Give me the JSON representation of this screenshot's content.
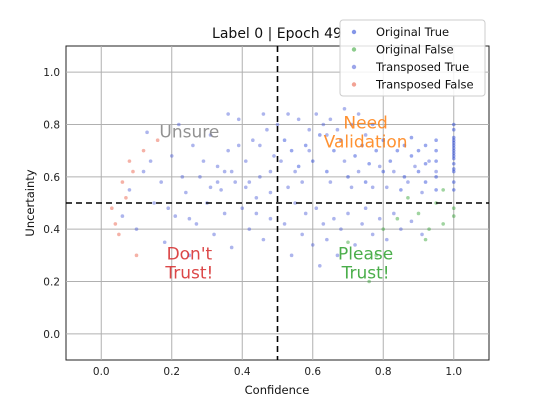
{
  "chart_data": {
    "type": "scatter",
    "title": "Label 0 | Epoch 49",
    "xlabel": "Confidence",
    "ylabel": "Uncertainty",
    "xlim": [
      -0.1,
      1.1
    ],
    "ylim": [
      -0.1,
      1.1
    ],
    "xticks": [
      "0.0",
      "0.2",
      "0.4",
      "0.6",
      "0.8",
      "1.0"
    ],
    "yticks": [
      "0.0",
      "0.2",
      "0.4",
      "0.6",
      "0.8",
      "1.0"
    ],
    "grid": true,
    "thresholds": {
      "x": 0.5,
      "y": 0.5
    },
    "legend_position": "top-right",
    "series": [
      {
        "name": "Original True",
        "color": "#1f3fd6",
        "points": [
          [
            1.0,
            0.62
          ],
          [
            1.0,
            0.65
          ],
          [
            1.0,
            0.68
          ],
          [
            1.0,
            0.7
          ],
          [
            1.0,
            0.72
          ],
          [
            1.0,
            0.74
          ],
          [
            1.0,
            0.75
          ],
          [
            1.0,
            0.63
          ],
          [
            1.0,
            0.58
          ],
          [
            1.0,
            0.55
          ],
          [
            1.0,
            0.78
          ],
          [
            1.0,
            0.8
          ],
          [
            1.0,
            0.67
          ],
          [
            1.0,
            0.69
          ],
          [
            1.0,
            0.71
          ],
          [
            1.0,
            0.73
          ],
          [
            0.95,
            0.7
          ],
          [
            0.95,
            0.66
          ],
          [
            0.95,
            0.74
          ],
          [
            0.95,
            0.6
          ],
          [
            0.95,
            0.55
          ],
          [
            0.92,
            0.72
          ],
          [
            0.92,
            0.65
          ],
          [
            0.92,
            0.58
          ],
          [
            0.9,
            0.7
          ],
          [
            0.9,
            0.62
          ],
          [
            0.88,
            0.75
          ],
          [
            0.88,
            0.68
          ],
          [
            0.86,
            0.72
          ],
          [
            0.86,
            0.6
          ],
          [
            0.84,
            0.7
          ],
          [
            0.82,
            0.66
          ],
          [
            0.8,
            0.74
          ],
          [
            0.8,
            0.62
          ],
          [
            0.78,
            0.7
          ],
          [
            0.76,
            0.65
          ],
          [
            0.74,
            0.72
          ],
          [
            0.72,
            0.68
          ],
          [
            0.7,
            0.6
          ],
          [
            0.68,
            0.74
          ],
          [
            0.66,
            0.7
          ],
          [
            0.64,
            0.62
          ],
          [
            0.62,
            0.76
          ],
          [
            0.6,
            0.66
          ],
          [
            0.58,
            0.72
          ],
          [
            0.56,
            0.64
          ],
          [
            0.54,
            0.7
          ],
          [
            0.52,
            0.74
          ],
          [
            0.85,
            0.55
          ],
          [
            0.75,
            0.58
          ]
        ]
      },
      {
        "name": "Original False",
        "color": "#2ca02c",
        "points": [
          [
            1.0,
            0.45
          ],
          [
            1.0,
            0.48
          ],
          [
            0.97,
            0.42
          ],
          [
            0.95,
            0.5
          ],
          [
            0.93,
            0.4
          ],
          [
            0.9,
            0.46
          ],
          [
            0.87,
            0.52
          ],
          [
            0.92,
            0.36
          ],
          [
            0.8,
            0.4
          ],
          [
            0.78,
            0.3
          ],
          [
            0.76,
            0.2
          ],
          [
            0.97,
            0.55
          ],
          [
            0.7,
            0.35
          ],
          [
            0.84,
            0.44
          ]
        ]
      },
      {
        "name": "Transposed True",
        "color": "#4a5bd8",
        "points": [
          [
            0.06,
            0.45
          ],
          [
            0.08,
            0.55
          ],
          [
            0.1,
            0.4
          ],
          [
            0.12,
            0.62
          ],
          [
            0.13,
            0.77
          ],
          [
            0.15,
            0.5
          ],
          [
            0.17,
            0.58
          ],
          [
            0.18,
            0.35
          ],
          [
            0.2,
            0.68
          ],
          [
            0.21,
            0.45
          ],
          [
            0.22,
            0.8
          ],
          [
            0.24,
            0.54
          ],
          [
            0.25,
            0.3
          ],
          [
            0.26,
            0.72
          ],
          [
            0.27,
            0.42
          ],
          [
            0.28,
            0.6
          ],
          [
            0.3,
            0.5
          ],
          [
            0.31,
            0.76
          ],
          [
            0.32,
            0.38
          ],
          [
            0.33,
            0.64
          ],
          [
            0.34,
            0.55
          ],
          [
            0.35,
            0.46
          ],
          [
            0.36,
            0.7
          ],
          [
            0.37,
            0.33
          ],
          [
            0.38,
            0.58
          ],
          [
            0.39,
            0.82
          ],
          [
            0.4,
            0.48
          ],
          [
            0.41,
            0.66
          ],
          [
            0.42,
            0.4
          ],
          [
            0.43,
            0.74
          ],
          [
            0.44,
            0.52
          ],
          [
            0.45,
            0.6
          ],
          [
            0.46,
            0.36
          ],
          [
            0.47,
            0.78
          ],
          [
            0.48,
            0.44
          ],
          [
            0.49,
            0.68
          ],
          [
            0.52,
            0.42
          ],
          [
            0.54,
            0.3
          ],
          [
            0.55,
            0.5
          ],
          [
            0.57,
            0.38
          ],
          [
            0.58,
            0.46
          ],
          [
            0.6,
            0.34
          ],
          [
            0.61,
            0.48
          ],
          [
            0.62,
            0.26
          ],
          [
            0.63,
            0.42
          ],
          [
            0.64,
            0.36
          ],
          [
            0.66,
            0.44
          ],
          [
            0.67,
            0.3
          ],
          [
            0.68,
            0.4
          ],
          [
            0.7,
            0.46
          ],
          [
            0.72,
            0.34
          ],
          [
            0.74,
            0.42
          ],
          [
            0.75,
            0.48
          ],
          [
            0.77,
            0.38
          ],
          [
            0.79,
            0.44
          ],
          [
            0.81,
            0.36
          ],
          [
            0.83,
            0.46
          ],
          [
            0.85,
            0.4
          ],
          [
            0.88,
            0.43
          ],
          [
            0.91,
            0.38
          ],
          [
            0.25,
            0.44
          ],
          [
            0.29,
            0.66
          ],
          [
            0.33,
            0.58
          ],
          [
            0.37,
            0.62
          ],
          [
            0.41,
            0.56
          ],
          [
            0.45,
            0.72
          ],
          [
            0.48,
            0.62
          ],
          [
            0.23,
            0.6
          ],
          [
            0.19,
            0.48
          ],
          [
            0.14,
            0.66
          ],
          [
            0.36,
            0.84
          ],
          [
            0.46,
            0.84
          ],
          [
            0.5,
            0.8
          ],
          [
            0.53,
            0.84
          ],
          [
            0.56,
            0.82
          ],
          [
            0.59,
            0.78
          ],
          [
            0.61,
            0.84
          ],
          [
            0.63,
            0.8
          ],
          [
            0.65,
            0.82
          ],
          [
            0.69,
            0.86
          ],
          [
            0.71,
            0.8
          ],
          [
            0.73,
            0.84
          ],
          [
            0.65,
            0.58
          ],
          [
            0.69,
            0.66
          ],
          [
            0.73,
            0.62
          ],
          [
            0.77,
            0.56
          ],
          [
            0.79,
            0.64
          ],
          [
            0.81,
            0.56
          ],
          [
            0.83,
            0.62
          ],
          [
            0.87,
            0.58
          ],
          [
            0.89,
            0.64
          ],
          [
            0.91,
            0.54
          ],
          [
            0.93,
            0.66
          ],
          [
            0.95,
            0.62
          ],
          [
            0.71,
            0.56
          ],
          [
            0.75,
            0.76
          ],
          [
            0.77,
            0.8
          ],
          [
            0.57,
            0.58
          ],
          [
            0.55,
            0.62
          ],
          [
            0.59,
            0.7
          ],
          [
            0.64,
            0.76
          ],
          [
            0.67,
            0.78
          ],
          [
            0.53,
            0.56
          ],
          [
            0.51,
            0.66
          ],
          [
            0.48,
            0.54
          ],
          [
            0.44,
            0.46
          ],
          [
            0.42,
            0.58
          ],
          [
            0.39,
            0.72
          ],
          [
            0.35,
            0.62
          ],
          [
            0.31,
            0.56
          ]
        ]
      },
      {
        "name": "Transposed False",
        "color": "#e8553c",
        "points": [
          [
            0.04,
            0.42
          ],
          [
            0.05,
            0.38
          ],
          [
            0.06,
            0.58
          ],
          [
            0.09,
            0.62
          ],
          [
            0.12,
            0.7
          ],
          [
            0.07,
            0.52
          ],
          [
            0.03,
            0.48
          ],
          [
            0.16,
            0.74
          ],
          [
            0.1,
            0.3
          ],
          [
            0.08,
            0.66
          ]
        ]
      }
    ],
    "quadrant_labels": [
      {
        "text": "Unsure",
        "x": 0.25,
        "y": 0.75,
        "color": "#7f7f7f"
      },
      {
        "text": "Need\nValidation",
        "x": 0.75,
        "y": 0.75,
        "color": "#ff7f0e"
      },
      {
        "text": "Don't\nTrust!",
        "x": 0.25,
        "y": 0.25,
        "color": "#d62728"
      },
      {
        "text": "Please\nTrust!",
        "x": 0.75,
        "y": 0.25,
        "color": "#2ca02c"
      }
    ]
  }
}
